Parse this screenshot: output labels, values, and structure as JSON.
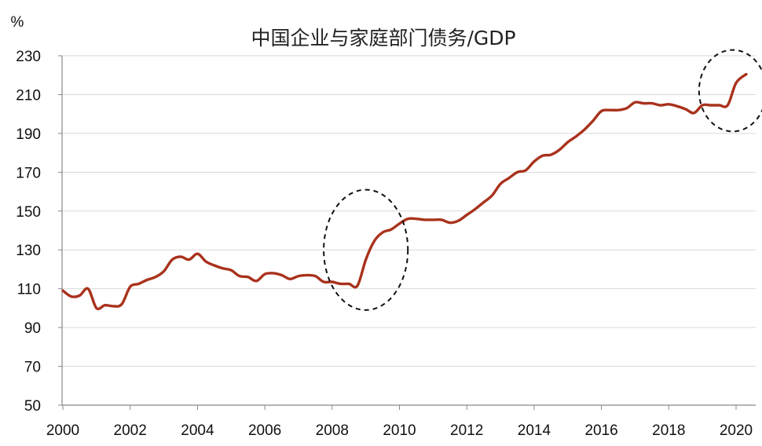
{
  "chart_data": {
    "type": "line",
    "title": "中国企业与家庭部门债务/GDP",
    "unit_label": "%",
    "xlabel": "",
    "ylabel": "",
    "xlim": [
      2000,
      2020.5
    ],
    "ylim": [
      50,
      230
    ],
    "y_ticks": [
      50,
      70,
      90,
      110,
      130,
      150,
      170,
      190,
      210,
      230
    ],
    "x_ticks": [
      2000,
      2002,
      2004,
      2006,
      2008,
      2010,
      2012,
      2014,
      2016,
      2018,
      2020
    ],
    "grid": {
      "horizontal": true,
      "vertical": false
    },
    "legend": "none",
    "series": [
      {
        "color": "#a9321c",
        "points": [
          [
            2000.0,
            109
          ],
          [
            2000.25,
            106
          ],
          [
            2000.5,
            106.5
          ],
          [
            2000.75,
            110
          ],
          [
            2001.0,
            100
          ],
          [
            2001.25,
            101.5
          ],
          [
            2001.5,
            101
          ],
          [
            2001.75,
            102
          ],
          [
            2002.0,
            111
          ],
          [
            2002.25,
            112.5
          ],
          [
            2002.5,
            114.5
          ],
          [
            2002.75,
            116
          ],
          [
            2003.0,
            119
          ],
          [
            2003.25,
            125
          ],
          [
            2003.5,
            126.5
          ],
          [
            2003.75,
            125
          ],
          [
            2004.0,
            128
          ],
          [
            2004.25,
            124
          ],
          [
            2004.5,
            122
          ],
          [
            2004.75,
            120.5
          ],
          [
            2005.0,
            119.5
          ],
          [
            2005.25,
            116.5
          ],
          [
            2005.5,
            116
          ],
          [
            2005.75,
            114
          ],
          [
            2006.0,
            117.5
          ],
          [
            2006.25,
            118
          ],
          [
            2006.5,
            117
          ],
          [
            2006.75,
            115
          ],
          [
            2007.0,
            116.5
          ],
          [
            2007.25,
            117
          ],
          [
            2007.5,
            116.5
          ],
          [
            2007.75,
            113.5
          ],
          [
            2008.0,
            113.5
          ],
          [
            2008.25,
            112.5
          ],
          [
            2008.5,
            112.5
          ],
          [
            2008.75,
            111.5
          ],
          [
            2009.0,
            125
          ],
          [
            2009.25,
            134.5
          ],
          [
            2009.5,
            139
          ],
          [
            2009.75,
            140.5
          ],
          [
            2010.0,
            143.5
          ],
          [
            2010.25,
            146
          ],
          [
            2010.5,
            146
          ],
          [
            2010.75,
            145.5
          ],
          [
            2011.0,
            145.5
          ],
          [
            2011.25,
            145.5
          ],
          [
            2011.5,
            144
          ],
          [
            2011.75,
            145
          ],
          [
            2012.0,
            148
          ],
          [
            2012.25,
            151
          ],
          [
            2012.5,
            154.5
          ],
          [
            2012.75,
            158
          ],
          [
            2013.0,
            164
          ],
          [
            2013.25,
            167
          ],
          [
            2013.5,
            170
          ],
          [
            2013.75,
            171
          ],
          [
            2014.0,
            175.5
          ],
          [
            2014.25,
            178.5
          ],
          [
            2014.5,
            179
          ],
          [
            2014.75,
            181.5
          ],
          [
            2015.0,
            185.5
          ],
          [
            2015.25,
            188.5
          ],
          [
            2015.5,
            192
          ],
          [
            2015.75,
            196.5
          ],
          [
            2016.0,
            201.5
          ],
          [
            2016.25,
            202
          ],
          [
            2016.5,
            202
          ],
          [
            2016.75,
            203
          ],
          [
            2017.0,
            206
          ],
          [
            2017.25,
            205.5
          ],
          [
            2017.5,
            205.5
          ],
          [
            2017.75,
            204.5
          ],
          [
            2018.0,
            205
          ],
          [
            2018.25,
            204
          ],
          [
            2018.5,
            202.5
          ],
          [
            2018.75,
            200.5
          ],
          [
            2019.0,
            204.5
          ],
          [
            2019.25,
            204.5
          ],
          [
            2019.5,
            204.5
          ],
          [
            2019.75,
            204.5
          ],
          [
            2020.0,
            216
          ],
          [
            2020.3,
            220.5
          ]
        ]
      }
    ],
    "annotations": [
      {
        "type": "dashed-ellipse",
        "center": [
          2009.0,
          130
        ],
        "rx_years": 1.25,
        "ry_values": 31
      },
      {
        "type": "dashed-ellipse",
        "center": [
          2019.9,
          212
        ],
        "rx_years": 1.0,
        "ry_values": 21
      }
    ],
    "colors": {
      "axis": "#888888",
      "grid": "#d9d9d9",
      "line": "#a9321c",
      "annotation": "#111111"
    }
  }
}
